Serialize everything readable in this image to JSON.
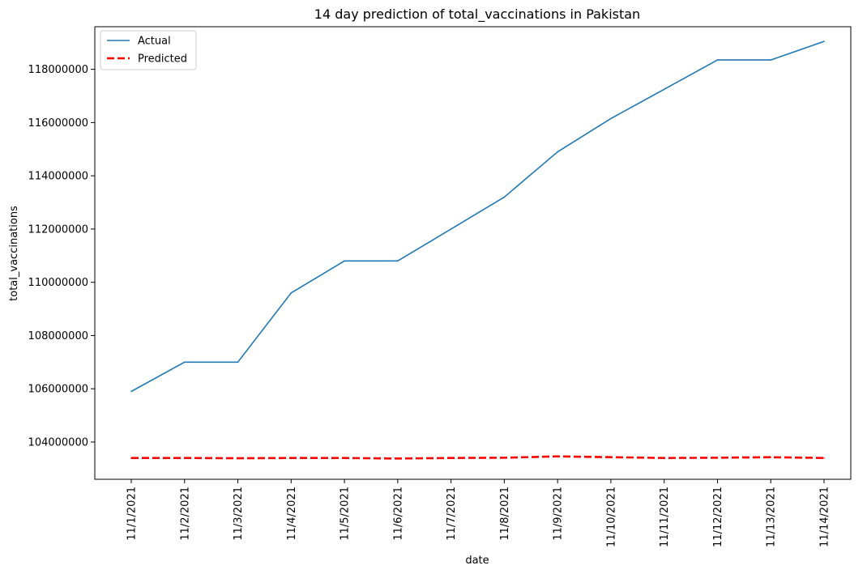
{
  "chart_data": {
    "type": "line",
    "title": "14 day prediction of total_vaccinations in Pakistan",
    "xlabel": "date",
    "ylabel": "total_vaccinations",
    "x": [
      "11/1/2021",
      "11/2/2021",
      "11/3/2021",
      "11/4/2021",
      "11/5/2021",
      "11/6/2021",
      "11/7/2021",
      "11/8/2021",
      "11/9/2021",
      "11/10/2021",
      "11/11/2021",
      "11/12/2021",
      "11/13/2021",
      "11/14/2021"
    ],
    "yticks": [
      104000000,
      106000000,
      108000000,
      110000000,
      112000000,
      114000000,
      116000000,
      118000000
    ],
    "ylim": [
      102600000,
      119600000
    ],
    "grid": false,
    "legend_position": "top-left",
    "series": [
      {
        "name": "Actual",
        "color": "#1f77b4",
        "style": "solid",
        "values": [
          105900000,
          107000000,
          107000000,
          109600000,
          110800000,
          110800000,
          112000000,
          113200000,
          114900000,
          116150000,
          117250000,
          118350000,
          118350000,
          119050000
        ]
      },
      {
        "name": "Predicted",
        "color": "#ff0000",
        "style": "dashed",
        "values": [
          103400000,
          103400000,
          103390000,
          103400000,
          103400000,
          103380000,
          103400000,
          103410000,
          103460000,
          103430000,
          103400000,
          103410000,
          103430000,
          103400000
        ]
      }
    ]
  }
}
